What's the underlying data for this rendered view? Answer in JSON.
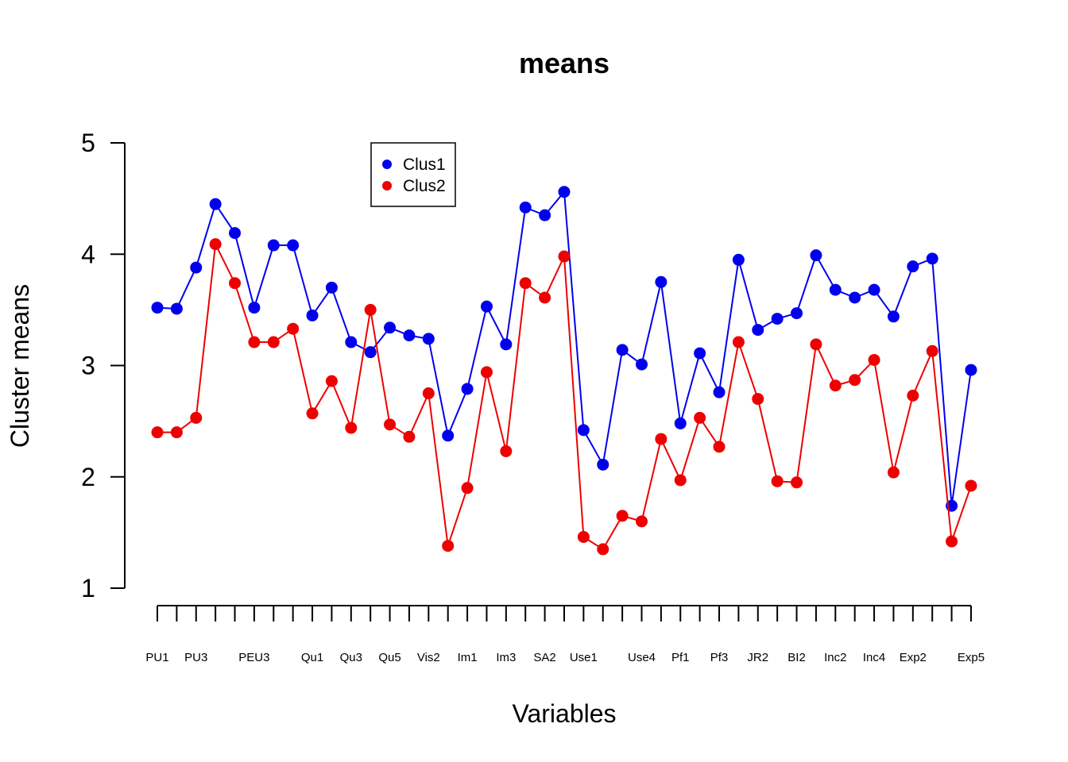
{
  "chart_data": {
    "type": "line",
    "title": "means",
    "xlabel": "Variables",
    "ylabel": "Cluster means",
    "ylim": [
      1,
      5
    ],
    "yticks": [
      1,
      2,
      3,
      4,
      5
    ],
    "n_points": 43,
    "x_tick_labels": [
      {
        "index": 0,
        "label": "PU1"
      },
      {
        "index": 2,
        "label": "PU3"
      },
      {
        "index": 5,
        "label": "PEU3"
      },
      {
        "index": 8,
        "label": "Qu1"
      },
      {
        "index": 10,
        "label": "Qu3"
      },
      {
        "index": 12,
        "label": "Qu5"
      },
      {
        "index": 14,
        "label": "Vis2"
      },
      {
        "index": 16,
        "label": "Im1"
      },
      {
        "index": 18,
        "label": "Im3"
      },
      {
        "index": 20,
        "label": "SA2"
      },
      {
        "index": 22,
        "label": "Use1"
      },
      {
        "index": 25,
        "label": "Use4"
      },
      {
        "index": 27,
        "label": "Pf1"
      },
      {
        "index": 29,
        "label": "Pf3"
      },
      {
        "index": 31,
        "label": "JR2"
      },
      {
        "index": 33,
        "label": "BI2"
      },
      {
        "index": 35,
        "label": "Inc2"
      },
      {
        "index": 37,
        "label": "Inc4"
      },
      {
        "index": 39,
        "label": "Exp2"
      },
      {
        "index": 42,
        "label": "Exp5"
      }
    ],
    "series": [
      {
        "name": "Clus1",
        "color": "#0000ee",
        "values": [
          3.52,
          3.51,
          3.88,
          4.45,
          4.19,
          3.52,
          4.08,
          4.08,
          3.45,
          3.7,
          3.21,
          3.12,
          3.34,
          3.27,
          3.24,
          2.37,
          2.79,
          3.53,
          3.19,
          4.42,
          4.35,
          4.56,
          2.42,
          2.11,
          3.14,
          3.01,
          3.75,
          2.48,
          3.11,
          2.76,
          3.95,
          3.32,
          3.42,
          3.47,
          3.99,
          3.68,
          3.61,
          3.68,
          3.44,
          3.89,
          3.96,
          1.74,
          2.96
        ]
      },
      {
        "name": "Clus2",
        "color": "#ee0000",
        "values": [
          2.4,
          2.4,
          2.53,
          4.09,
          3.74,
          3.21,
          3.21,
          3.33,
          2.57,
          2.86,
          2.44,
          3.5,
          2.47,
          2.36,
          2.75,
          1.38,
          1.9,
          2.94,
          2.23,
          3.74,
          3.61,
          3.98,
          1.46,
          1.35,
          1.65,
          1.6,
          2.34,
          1.97,
          2.53,
          2.27,
          3.21,
          2.7,
          1.96,
          1.95,
          3.19,
          2.82,
          2.87,
          3.05,
          2.04,
          2.73,
          3.13,
          1.42,
          1.92
        ]
      }
    ],
    "legend": {
      "position": "top-center",
      "entries": [
        "Clus1",
        "Clus2"
      ]
    }
  }
}
